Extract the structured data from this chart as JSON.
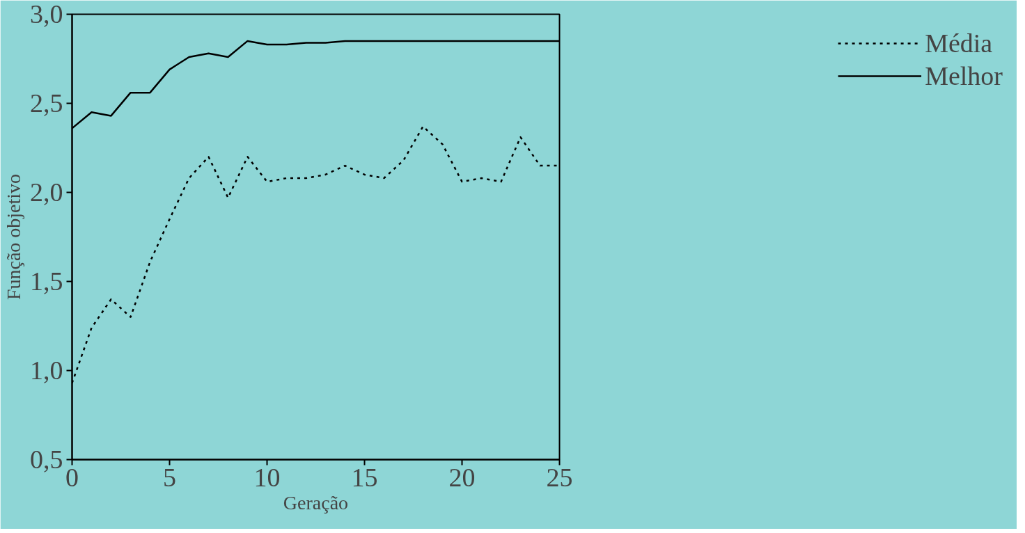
{
  "chart_data": {
    "type": "line",
    "xlabel": "Geração",
    "ylabel": "Função objetivo",
    "x": [
      0,
      1,
      2,
      3,
      4,
      5,
      6,
      7,
      8,
      9,
      10,
      11,
      12,
      13,
      14,
      15,
      16,
      17,
      18,
      19,
      20,
      21,
      22,
      23,
      24,
      25
    ],
    "series": [
      {
        "name": "Média",
        "color": "#000000",
        "line_style": "dotted",
        "values": [
          0.93,
          1.24,
          1.4,
          1.3,
          1.61,
          1.85,
          2.08,
          2.2,
          1.97,
          2.2,
          2.06,
          2.08,
          2.08,
          2.1,
          2.15,
          2.1,
          2.08,
          2.18,
          2.37,
          2.27,
          2.06,
          2.08,
          2.06,
          2.31,
          2.15,
          2.15
        ]
      },
      {
        "name": "Melhor",
        "color": "#000000",
        "line_style": "solid",
        "values": [
          2.36,
          2.45,
          2.43,
          2.56,
          2.56,
          2.69,
          2.76,
          2.78,
          2.76,
          2.85,
          2.83,
          2.83,
          2.84,
          2.84,
          2.85,
          2.85,
          2.85,
          2.85,
          2.85,
          2.85,
          2.85,
          2.85,
          2.85,
          2.85,
          2.85,
          2.85
        ]
      }
    ],
    "xlim": [
      0,
      25
    ],
    "xticks": [
      0,
      5,
      10,
      15,
      20,
      25
    ],
    "ylim": [
      0.5,
      3.0
    ],
    "yticks": [
      {
        "value": 0.5,
        "label": "0,5"
      },
      {
        "value": 1.0,
        "label": "1,0"
      },
      {
        "value": 1.5,
        "label": "1,5"
      },
      {
        "value": 2.0,
        "label": "2,0"
      },
      {
        "value": 2.5,
        "label": "2,5"
      },
      {
        "value": 3.0,
        "label": "3,0"
      }
    ],
    "grid": false,
    "legend": "top right",
    "marker": "none"
  }
}
